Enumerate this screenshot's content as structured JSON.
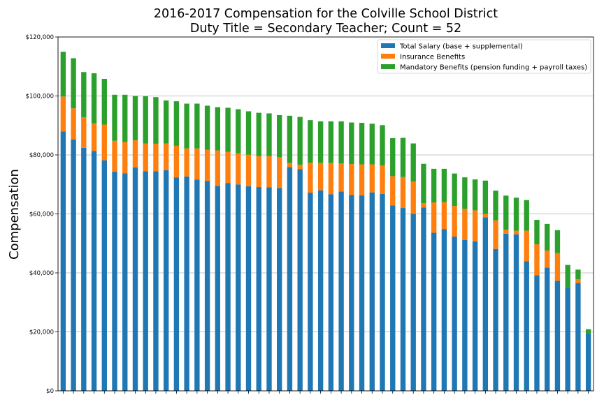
{
  "chart_data": {
    "type": "bar",
    "stacked": true,
    "title": "2016-2017 Compensation for the Colville School District",
    "subtitle": "Duty Title = Secondary Teacher; Count = 52",
    "xlabel": "",
    "ylabel": "Compensation",
    "ylim": [
      0,
      120000
    ],
    "yticks": [
      0,
      20000,
      40000,
      60000,
      80000,
      100000,
      120000
    ],
    "ytick_labels": [
      "$0",
      "$20,000",
      "$40,000",
      "$60,000",
      "$80,000",
      "$100,000",
      "$120,000"
    ],
    "grid": "horizontal",
    "legend_position": "top-right",
    "series": [
      {
        "name": "Total Salary (base + supplemental)",
        "color": "#1f77b4",
        "values": [
          88000,
          85200,
          82400,
          81300,
          78200,
          74300,
          73800,
          75800,
          74500,
          74500,
          74800,
          72400,
          72700,
          71600,
          71200,
          69500,
          70500,
          70000,
          69400,
          69100,
          69000,
          68800,
          75900,
          75200,
          67200,
          68000,
          66700,
          67600,
          66400,
          66300,
          67300,
          66800,
          62900,
          62000,
          60000,
          62200,
          53600,
          54800,
          52300,
          51200,
          50700,
          58800,
          48100,
          53300,
          53100,
          43900,
          39200,
          41800,
          37300,
          34800,
          36600,
          19600
        ]
      },
      {
        "name": "Insurance Benefits",
        "color": "#ff7f0e",
        "values": [
          11800,
          10600,
          10400,
          9400,
          12100,
          10500,
          10600,
          9200,
          9400,
          9300,
          9100,
          10700,
          9500,
          10600,
          10500,
          12000,
          10500,
          10500,
          10700,
          10500,
          10600,
          10400,
          1400,
          1500,
          10200,
          9300,
          10600,
          9500,
          10500,
          10500,
          9500,
          9600,
          9900,
          10500,
          11000,
          1400,
          10300,
          9200,
          10400,
          10500,
          10500,
          1200,
          9700,
          1300,
          1200,
          10400,
          10500,
          5800,
          9400,
          0,
          1200,
          0
        ]
      },
      {
        "name": "Mandatory Benefits (pension funding + payroll taxes)",
        "color": "#2ca02c",
        "values": [
          15200,
          17000,
          15300,
          17000,
          15500,
          15600,
          16000,
          15000,
          16000,
          15800,
          14600,
          15100,
          15200,
          15200,
          15000,
          14700,
          15000,
          15000,
          14700,
          14700,
          14500,
          14300,
          16000,
          16200,
          14400,
          14100,
          14100,
          14300,
          14100,
          14100,
          13800,
          13700,
          12900,
          13300,
          12900,
          13400,
          11400,
          11300,
          11000,
          10700,
          10500,
          11300,
          10100,
          11600,
          11200,
          10400,
          8300,
          9000,
          7800,
          7900,
          3300,
          1300
        ]
      }
    ]
  }
}
